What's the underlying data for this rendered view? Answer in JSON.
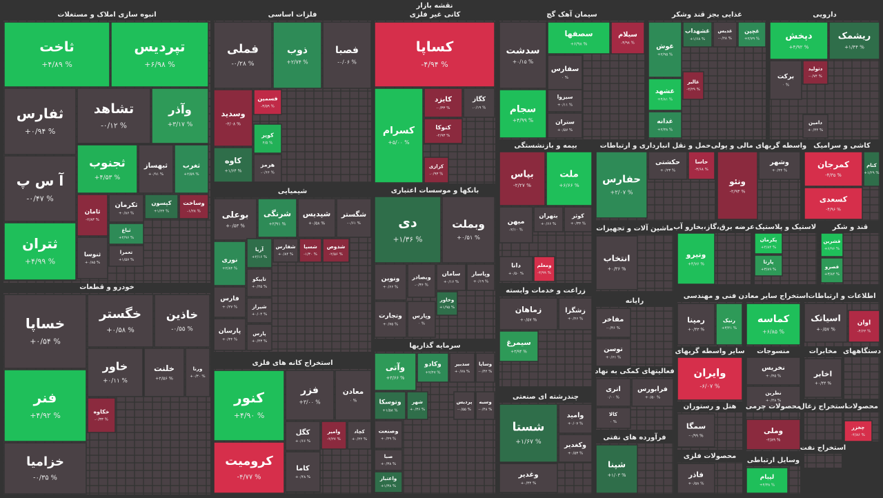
{
  "header": {
    "title": "نقشه بازار"
  },
  "sectors": [
    {
      "title": "انبوه سازی املاک و مستغلات",
      "tiles": [
        {
          "label": "ثاخت",
          "change": "+۴/۸۹ %",
          "color": "#1fbf5a"
        },
        {
          "label": "تپردیس",
          "change": "+۶/۹۸ %",
          "color": "#1fbf5a"
        },
        {
          "label": "ثفارس",
          "change": "+۰/۹۴ %",
          "color": "#4a4145"
        },
        {
          "label": "تشاهد",
          "change": "-۰/۱۲ %",
          "color": "#4a4145"
        },
        {
          "label": "وآذر",
          "change": "+۳/۱۷ %",
          "color": "#2e9a58"
        },
        {
          "label": "آ س پ",
          "change": "-۰/۴۷ %",
          "color": "#4a4145"
        },
        {
          "label": "ثجنوب",
          "change": "+۴/۵۳ %",
          "color": "#22b157"
        },
        {
          "label": "ثبهساز",
          "change": "+۰/۹۱ %",
          "color": "#4a4145"
        },
        {
          "label": "ثغرب",
          "change": "+۲/۵۹ %",
          "color": "#2e8b57"
        },
        {
          "label": "ثتران",
          "change": "+۴/۹۹ %",
          "color": "#1fbf5a"
        },
        {
          "label": "ثامان",
          "change": "-۲/۸۳ %",
          "color": "#8b2a3e"
        },
        {
          "label": "ثکرمان",
          "change": "+۰/۸۶ %",
          "color": "#4a4145"
        },
        {
          "label": "کیسون",
          "change": "+۱/۲۴ %",
          "color": "#2f6e4a"
        },
        {
          "label": "وساخت",
          "change": "-۱/۲۸ %",
          "color": "#8b2a3e"
        },
        {
          "label": "ثنوسا",
          "change": "+۰/۸۵ %",
          "color": "#4a4145"
        },
        {
          "label": "ثباغ",
          "change": "+۲/۹۶ %",
          "color": "#2e8b57"
        },
        {
          "label": "تعمرا",
          "change": "+۱/۵۷ %",
          "color": "#4a4145"
        }
      ]
    },
    {
      "title": "خودرو و قطعات",
      "tiles": [
        {
          "label": "خساپا",
          "change": "+۰/۵۴ %",
          "color": "#4a4145"
        },
        {
          "label": "فنر",
          "change": "+۴/۹۲ %",
          "color": "#1fbf5a"
        },
        {
          "label": "خزامیا",
          "change": "-۰/۳۵ %",
          "color": "#4a4145"
        },
        {
          "label": "خگستر",
          "change": "+۰/۵۸ %",
          "color": "#4a4145"
        },
        {
          "label": "خاذین",
          "change": "-۰/۵۵ %",
          "color": "#4a4145"
        },
        {
          "label": "خاور",
          "change": "+۰/۱۱ %",
          "color": "#4a4145"
        },
        {
          "label": "خلنت",
          "change": "+۲/۵۶ %",
          "color": "#4a4145"
        },
        {
          "label": "ورنا",
          "change": "+۰/۳۰ %",
          "color": "#4a4145"
        },
        {
          "label": "خکاوه",
          "change": "-۰/۳۳ %",
          "color": "#8b2a3e"
        }
      ]
    },
    {
      "title": "فلزات اساسی",
      "tiles": [
        {
          "label": "فملی",
          "change": "-۰/۲۸ %",
          "color": "#4a4145"
        },
        {
          "label": "ذوب",
          "change": "+۲/۷۴ %",
          "color": "#2e8b57"
        },
        {
          "label": "فصبا",
          "change": "-۰/۰۶ %",
          "color": "#4a4145"
        },
        {
          "label": "وسدید",
          "change": "-۲/۰۸ %",
          "color": "#8b2a3e"
        },
        {
          "label": "فسمین",
          "change": "-۳/۵۹ %",
          "color": "#c02a47"
        },
        {
          "label": "کویر",
          "change": "۴/۵ %",
          "color": "#22b157"
        },
        {
          "label": "کاوه",
          "change": "+۱/۶۴ %",
          "color": "#2f6e4a"
        },
        {
          "label": "هرمز",
          "change": "-۰/۶۶ %",
          "color": "#4a4145"
        }
      ]
    },
    {
      "title": "کانی غیر فلزی",
      "tiles": [
        {
          "label": "کساپا",
          "change": "-۴/۹۴ %",
          "color": "#d62f4b"
        },
        {
          "label": "کسرام",
          "change": "+۵/۰۰ %",
          "color": "#1fbf5a"
        },
        {
          "label": "کایزد",
          "change": "-۰/۳۳ %",
          "color": "#8b2a3e"
        },
        {
          "label": "کگاز",
          "change": "-۰/۱۹ %",
          "color": "#4a4145"
        },
        {
          "label": "کتوکا",
          "change": "-۲/۹۳ %",
          "color": "#8b2a3e"
        },
        {
          "label": "کرازی",
          "change": "-۰/۹۳ %",
          "color": "#8b2a3e"
        }
      ]
    },
    {
      "title": "سیمان آهک گچ",
      "tiles": [
        {
          "label": "سدشت",
          "change": "+۰/۱۵ %",
          "color": "#4a4145"
        },
        {
          "label": "سصفها",
          "change": "+۶/۹۸ %",
          "color": "#1fbf5a"
        },
        {
          "label": "سیلام",
          "change": "-۳/۹۸ %",
          "color": "#a52a44"
        },
        {
          "label": "سفارس",
          "change": "۰ %",
          "color": "#4a4145"
        },
        {
          "label": "سجام",
          "change": "+۴/۹۹ %",
          "color": "#1fbf5a"
        },
        {
          "label": "سیزوا",
          "change": "+۰/۱۱ %",
          "color": "#4a4145"
        },
        {
          "label": "ستران",
          "change": "+۰/۵۷ %",
          "color": "#4a4145"
        }
      ]
    },
    {
      "title": "غذایی بجز قند وشکر",
      "tiles": [
        {
          "label": "غوش",
          "change": "+۲/۹۵ %",
          "color": "#2e8b57"
        },
        {
          "label": "غشهداب",
          "change": "+۱/۶۸ %",
          "color": "#2f6e4a"
        },
        {
          "label": "غدیس",
          "change": "-۰/۲۸ %",
          "color": "#4a4145"
        },
        {
          "label": "غچین",
          "change": "+۲/۷۹ %",
          "color": "#2e8b57"
        },
        {
          "label": "غشهد",
          "change": "+۴/۸۱ %",
          "color": "#1fbf5a"
        },
        {
          "label": "غالبر",
          "change": "-۲/۲۹ %",
          "color": "#8b2a3e"
        },
        {
          "label": "غدانه",
          "change": "+۲/۳۸ %",
          "color": "#2e8b57"
        }
      ]
    },
    {
      "title": "دارویی",
      "tiles": [
        {
          "label": "دپخش",
          "change": "+۴/۹۲ %",
          "color": "#1fbf5a"
        },
        {
          "label": "ریشمک",
          "change": "+۱/۴۴ %",
          "color": "#2f6e4a"
        },
        {
          "label": "برکت",
          "change": "۰ %",
          "color": "#4a4145"
        },
        {
          "label": "دتولید",
          "change": "-۰/۷۴ %",
          "color": "#8b2a3e"
        },
        {
          "label": "دامین",
          "change": "+۰/۴۴ %",
          "color": "#4a4145"
        }
      ]
    },
    {
      "title": "بانکها و موسسات اعتباری",
      "tiles": [
        {
          "label": "دی",
          "change": "+۱/۳۶ %",
          "color": "#2f6e4a"
        },
        {
          "label": "وبملت",
          "change": "+۰/۵۱ %",
          "color": "#4a4145"
        },
        {
          "label": "ونوین",
          "change": "+۰/۶۶ %",
          "color": "#4a4145"
        },
        {
          "label": "وبصادر",
          "change": "-۰/۳۶ %",
          "color": "#4a4145"
        },
        {
          "label": "سامان",
          "change": "+۰/۱۶ %",
          "color": "#4a4145"
        },
        {
          "label": "وپاسار",
          "change": "+۰/۱۹ %",
          "color": "#4a4145"
        },
        {
          "label": "وتجارت",
          "change": "+۰/۷۵ %",
          "color": "#4a4145"
        },
        {
          "label": "وپارس",
          "change": "۰ %",
          "color": "#4a4145"
        },
        {
          "label": "وخاور",
          "change": "+۱/۹۵ %",
          "color": "#2f6e4a"
        }
      ]
    },
    {
      "title": "سرمایه گذاریها",
      "tiles": [
        {
          "label": "وآتی",
          "change": "+۳/۶۶ %",
          "color": "#2e9a58"
        },
        {
          "label": "وکادو",
          "change": "+۲/۴۷ %",
          "color": "#2e8b57"
        },
        {
          "label": "سدبیر",
          "change": "+۰/۷۸ %",
          "color": "#4a4145"
        },
        {
          "label": "وساپا",
          "change": "-۰/۴۲ %",
          "color": "#4a4145"
        },
        {
          "label": "وتوسکا",
          "change": "+۱/۵۸ %",
          "color": "#2f6e4a"
        },
        {
          "label": "شهر",
          "change": "+۰/۳۶ %",
          "color": "#2f6e4a"
        },
        {
          "label": "پردیس",
          "change": "-۰/۵۵ %",
          "color": "#4a4145"
        },
        {
          "label": "وسبه",
          "change": "-۰/۴۸ %",
          "color": "#4a4145"
        },
        {
          "label": "وصنعت",
          "change": "+۰/۴۹ %",
          "color": "#4a4145"
        },
        {
          "label": "صبا",
          "change": "+۰/۳۸ %",
          "color": "#4a4145"
        },
        {
          "label": "واعتبار",
          "change": "+۱/۳۸ %",
          "color": "#2f6e4a"
        }
      ]
    },
    {
      "title": "شیمیایی",
      "tiles": [
        {
          "label": "بوعلی",
          "change": "+۰/۵۳ %",
          "color": "#4a4145"
        },
        {
          "label": "شرنگی",
          "change": "+۲/۹۱ %",
          "color": "#2e8b57"
        },
        {
          "label": "شپدیس",
          "change": "+۰/۵۸ %",
          "color": "#4a4145"
        },
        {
          "label": "شگستر",
          "change": "-۰/۶۱ %",
          "color": "#4a4145"
        },
        {
          "label": "نوری",
          "change": "+۲/۸۴ %",
          "color": "#2e8b57"
        },
        {
          "label": "آریا",
          "change": "+۲/۱۶ %",
          "color": "#2f6e4a"
        },
        {
          "label": "شفارس",
          "change": "+۰/۸۴ %",
          "color": "#4a4145"
        },
        {
          "label": "شسپا",
          "change": "-۱/۳۰ %",
          "color": "#8b2a3e"
        },
        {
          "label": "شدوص",
          "change": "-۲/۵۶ %",
          "color": "#8b2a3e"
        },
        {
          "label": "فارس",
          "change": "+۰/۲۷ %",
          "color": "#4a4145"
        },
        {
          "label": "تاپیکو",
          "change": "+۰/۲۵ %",
          "color": "#4a4145"
        },
        {
          "label": "شیراز",
          "change": "+۰/۰۴ %",
          "color": "#4a4145"
        },
        {
          "label": "پارسان",
          "change": "+۰/۴۴ %",
          "color": "#4a4145"
        },
        {
          "label": "پارس",
          "change": "+۰/۴۳ %",
          "color": "#4a4145"
        }
      ]
    },
    {
      "title": "استخراج کانه های فلزی",
      "tiles": [
        {
          "label": "کنور",
          "change": "+۴/۹۰ %",
          "color": "#1fbf5a"
        },
        {
          "label": "فزر",
          "change": "+۳/۰۰ %",
          "color": "#4a4145"
        },
        {
          "label": "معادن",
          "change": "۰ %",
          "color": "#4a4145"
        },
        {
          "label": "کرومیت",
          "change": "-۴/۷۷ %",
          "color": "#d62f4b"
        },
        {
          "label": "کگل",
          "change": "+۰/۶۶ %",
          "color": "#4a4145"
        },
        {
          "label": "وامیر",
          "change": "-۲/۲۷ %",
          "color": "#8b2a3e"
        },
        {
          "label": "کچاد",
          "change": "+۰/۲۲ %",
          "color": "#4a4145"
        },
        {
          "label": "کاما",
          "change": "+۰/۴۸ %",
          "color": "#4a4145"
        }
      ]
    },
    {
      "title": "بیمه و بازنشستگی",
      "tiles": [
        {
          "label": "بپاس",
          "change": "-۲/۲۷ %",
          "color": "#8b2a3e"
        },
        {
          "label": "ملت",
          "change": "+۶/۶۶ %",
          "color": "#1fbf5a"
        },
        {
          "label": "بتهران",
          "change": "+۰/۶۶ %",
          "color": "#4a4145"
        },
        {
          "label": "کوثر",
          "change": "+۰/۳۴ %",
          "color": "#4a4145"
        },
        {
          "label": "میهن",
          "change": "-۲/۱۰ %",
          "color": "#4a4145"
        },
        {
          "label": "دانا",
          "change": "+۰/۵۰ %",
          "color": "#4a4145"
        },
        {
          "label": "ومعلم",
          "change": "-۴/۹۹ %",
          "color": "#d62f4b"
        }
      ]
    },
    {
      "title": "زراعت و خدمات وابسته",
      "tiles": [
        {
          "label": "زماهان",
          "change": "+۰/۵۷ %",
          "color": "#4a4145"
        },
        {
          "label": "زشگزا",
          "change": "+۰/۴۶ %",
          "color": "#4a4145"
        },
        {
          "label": "سیمرغ",
          "change": "+۳/۹۴ %",
          "color": "#2e9a58"
        }
      ]
    },
    {
      "title": "چندرشته ای صنعتی",
      "tiles": [
        {
          "label": "شستا",
          "change": "+۱/۶۷ %",
          "color": "#2f6e4a"
        },
        {
          "label": "وامید",
          "change": "+۰/۰۷ %",
          "color": "#4a4145"
        },
        {
          "label": "وکغدیر",
          "change": "+۰/۵۳ %",
          "color": "#4a4145"
        },
        {
          "label": "وغدیر",
          "change": "+۰/۴۴ %",
          "color": "#4a4145"
        }
      ]
    },
    {
      "title": "حمل و نقل انبارداری و ارتباطات",
      "tiles": [
        {
          "label": "حفارس",
          "change": "+۲/۰۷ %",
          "color": "#2e8b57"
        },
        {
          "label": "حکشتی",
          "change": "+۰/۲۳ %",
          "color": "#4a4145"
        },
        {
          "label": "حاسا",
          "change": "-۳/۶۸ %",
          "color": "#a52a44"
        }
      ]
    },
    {
      "title": "ماشین آلات و تجهیزات",
      "tiles": [
        {
          "label": "انتخاب",
          "change": "+۰/۳۶ %",
          "color": "#4a4145"
        }
      ]
    },
    {
      "title": "رایانه",
      "tiles": [
        {
          "label": "مفاخر",
          "change": "-۰/۴۶ %",
          "color": "#4a4145"
        },
        {
          "label": "توسن",
          "change": "+۰/۶۱ %",
          "color": "#4a4145"
        }
      ]
    },
    {
      "title": "فعالیتهای کمکی به نهاد",
      "tiles": [
        {
          "label": "اتری",
          "change": "۰/۰۰ %",
          "color": "#4a4145"
        },
        {
          "label": "فرابورس",
          "change": "+۰/۵۰ %",
          "color": "#4a4145"
        },
        {
          "label": "کالا",
          "change": "۰ %",
          "color": "#4a4145"
        }
      ]
    },
    {
      "title": "فرآورده های نفتی",
      "tiles": [
        {
          "label": "شپنا",
          "change": "+۱/۰۳ %",
          "color": "#2f6e4a"
        }
      ]
    },
    {
      "title": "واسطه گریهای مالی و پولی",
      "tiles": [
        {
          "label": "ونئو",
          "change": "-۲/۹۳ %",
          "color": "#8b2a3e"
        },
        {
          "label": "وشهر",
          "change": "+۰/۴۴ %",
          "color": "#4a4145"
        }
      ]
    },
    {
      "title": "کاشی و سرامیک",
      "tiles": [
        {
          "label": "کمرجان",
          "change": "-۴/۳۵ %",
          "color": "#d62f4b"
        },
        {
          "label": "کتام",
          "change": "+۱/۲۹ %",
          "color": "#2f6e4a"
        },
        {
          "label": "کسعدی",
          "change": "-۴/۹۶ %",
          "color": "#d62f4b"
        }
      ]
    },
    {
      "title": "عرضه برق،گاز،بخارو آب",
      "tiles": [
        {
          "label": "ونیرو",
          "change": "+۴/۷۶ %",
          "color": "#1fbf5a"
        }
      ]
    },
    {
      "title": "لاستیک و پلاستیک",
      "tiles": [
        {
          "label": "پکرمان",
          "change": "+۴/۸۴ %",
          "color": "#1fbf5a"
        },
        {
          "label": "پارتا",
          "change": "+۳/۸۹ %",
          "color": "#2e9a58"
        }
      ]
    },
    {
      "title": "قند و شکر",
      "tiles": [
        {
          "label": "قشرین",
          "change": "+۶/۹۶ %",
          "color": "#1fbf5a"
        },
        {
          "label": "قصرو",
          "change": "+۳/۸۴ %",
          "color": "#2e9a58"
        }
      ]
    },
    {
      "title": "فنی و مهندسی",
      "tiles": [
        {
          "label": "رمپنا",
          "change": "+۰/۴۳ %",
          "color": "#4a4145"
        },
        {
          "label": "رنیک",
          "change": "+۳/۴۱ %",
          "color": "#2e9a58"
        }
      ]
    },
    {
      "title": "استخراج سایر معادن",
      "tiles": [
        {
          "label": "کماسه",
          "change": "+۶/۸۵ %",
          "color": "#1fbf5a"
        }
      ]
    },
    {
      "title": "اطلاعات و ارتباطات",
      "tiles": [
        {
          "label": "اسیاتک",
          "change": "+۰/۵۷ %",
          "color": "#4a4145"
        },
        {
          "label": "اوان",
          "change": "-۴/۶۲ %",
          "color": "#b02a45"
        }
      ]
    },
    {
      "title": "سایر واسطه گریهای",
      "tiles": [
        {
          "label": "وایران",
          "change": "-۶/۰۷ %",
          "color": "#d62f4b"
        }
      ]
    },
    {
      "title": "منسوجات",
      "tiles": [
        {
          "label": "نخریس",
          "change": "+۰/۴۵ %",
          "color": "#4a4145"
        },
        {
          "label": "نطرین",
          "change": "+۰/۴۸ %",
          "color": "#4a4145"
        }
      ]
    },
    {
      "title": "مخابرات",
      "tiles": [
        {
          "label": "اخابر",
          "change": "+۰/۴۴ %",
          "color": "#4a4145"
        }
      ]
    },
    {
      "title": "دستگاههای",
      "tiles": []
    },
    {
      "title": "هتل و رستوران",
      "tiles": [
        {
          "label": "سمگا",
          "change": "-۰/۹۹ %",
          "color": "#4a4145"
        }
      ]
    },
    {
      "title": "محصولات چرمی",
      "tiles": [
        {
          "label": "وملی",
          "change": "-۲/۸۹ %",
          "color": "#8b2a3e"
        }
      ]
    },
    {
      "title": "استخراج زغال",
      "tiles": []
    },
    {
      "title": "محصولات",
      "tiles": [
        {
          "label": "چخزر",
          "change": "-۴/۸۶ %",
          "color": "#d62f4b"
        }
      ]
    },
    {
      "title": "محصولات فلزی",
      "tiles": [
        {
          "label": "فاذر",
          "change": "+۰/۵۸ %",
          "color": "#4a4145"
        }
      ]
    },
    {
      "title": "وسایل ارتباطی",
      "tiles": [
        {
          "label": "لپیام",
          "change": "+۴/۳۸ %",
          "color": "#1fbf5a"
        }
      ]
    },
    {
      "title": "استخراج نفت",
      "tiles": []
    }
  ]
}
